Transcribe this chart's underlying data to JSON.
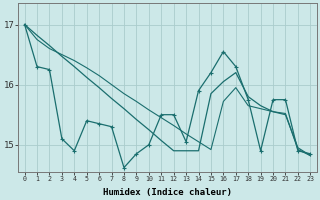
{
  "xlabel": "Humidex (Indice chaleur)",
  "bg_color": "#cce8e8",
  "grid_color": "#aacccc",
  "line_color": "#1a6e6e",
  "xlim_min": -0.5,
  "xlim_max": 23.5,
  "ylim_min": 14.55,
  "ylim_max": 17.35,
  "yticks": [
    15,
    16,
    17
  ],
  "xticks": [
    0,
    1,
    2,
    3,
    4,
    5,
    6,
    7,
    8,
    9,
    10,
    11,
    12,
    13,
    14,
    15,
    16,
    17,
    18,
    19,
    20,
    21,
    22,
    23
  ],
  "line_jagged_x": [
    0,
    1,
    2,
    3,
    4,
    5,
    6,
    7,
    8,
    9,
    10,
    11,
    12,
    13,
    14,
    15,
    16,
    17,
    18,
    19,
    20,
    21,
    22,
    23
  ],
  "line_jagged_y": [
    17.0,
    16.3,
    16.25,
    15.1,
    14.9,
    15.4,
    15.35,
    15.3,
    14.62,
    14.85,
    15.0,
    15.5,
    15.5,
    15.05,
    15.9,
    16.2,
    16.55,
    16.3,
    15.75,
    14.9,
    15.75,
    15.75,
    14.9,
    14.85
  ],
  "line_trend_x": [
    0,
    1,
    2,
    3,
    4,
    5,
    6,
    7,
    8,
    9,
    10,
    11,
    12,
    13,
    14,
    15,
    16,
    17,
    18,
    19,
    20,
    21,
    22,
    23
  ],
  "line_trend_y": [
    17.0,
    16.82,
    16.65,
    16.47,
    16.3,
    16.12,
    15.95,
    15.77,
    15.6,
    15.42,
    15.25,
    15.07,
    14.9,
    14.9,
    14.9,
    15.85,
    16.05,
    16.2,
    15.8,
    15.65,
    15.55,
    15.5,
    14.95,
    14.82
  ],
  "line_flat_x": [
    0,
    1,
    2,
    3,
    4,
    5,
    6,
    7,
    8,
    9,
    10,
    11,
    12,
    13,
    14,
    15,
    16,
    17,
    18,
    19,
    20,
    21,
    22,
    23
  ],
  "line_flat_y": [
    17.0,
    16.75,
    16.6,
    16.5,
    16.4,
    16.28,
    16.15,
    16.0,
    15.85,
    15.72,
    15.58,
    15.45,
    15.32,
    15.18,
    15.05,
    14.92,
    15.72,
    15.95,
    15.65,
    15.6,
    15.55,
    15.52,
    14.92,
    14.82
  ]
}
